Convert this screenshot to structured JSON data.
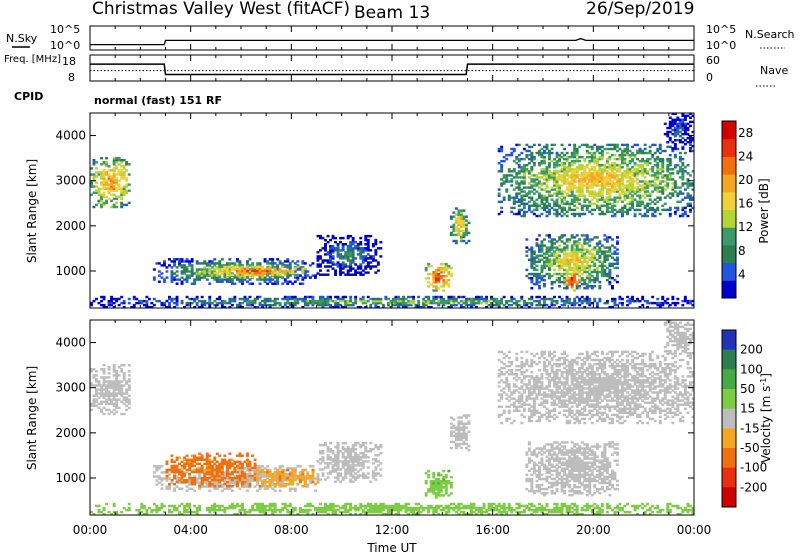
{
  "header": {
    "station": "Christmas Valley West (fitACF)",
    "beam": "Beam 13",
    "date": "26/Sep/2019"
  },
  "chart_data": [
    {
      "type": "line",
      "panel": "noise",
      "left_label": "N.Sky",
      "right_label": "N.Search",
      "left_ticks": [
        "10^5",
        "10^0"
      ],
      "right_ticks": [
        "10^5",
        "10^0"
      ],
      "series": [
        {
          "name": "N.Sky",
          "x": [
            0,
            2.95,
            3.0,
            13,
            19.3,
            19.5,
            19.7,
            24
          ],
          "y": [
            0.2,
            0.2,
            0.55,
            0.55,
            0.55,
            0.7,
            0.55,
            0.55
          ]
        }
      ]
    },
    {
      "type": "line",
      "panel": "frequency",
      "left_label": "Freq. [MHz]",
      "right_label": "Nave",
      "left_ticks": [
        "18",
        "8"
      ],
      "right_ticks": [
        "60",
        "0"
      ],
      "series": [
        {
          "name": "Freq. [MHz]",
          "x": [
            0,
            2.95,
            3.0,
            14.95,
            15.0,
            24
          ],
          "y": [
            14.5,
            14.5,
            10.5,
            10.5,
            14.5,
            14.5
          ]
        },
        {
          "name": "Nave",
          "x": [
            0,
            24
          ],
          "y": [
            24,
            24
          ]
        }
      ]
    },
    {
      "type": "heatmap",
      "panel": "power",
      "cpid_label": "CPID",
      "cpid_text": "normal (fast) 151 RF",
      "ylabel": "Slant Range [km]",
      "xlabel": "Time UT",
      "x_ticks": [
        "00:00",
        "04:00",
        "08:00",
        "12:00",
        "16:00",
        "20:00",
        "00:00"
      ],
      "xlim": [
        0,
        24
      ],
      "y_ticks": [
        "1000",
        "2000",
        "3000",
        "4000"
      ],
      "ylim": [
        180,
        4500
      ],
      "colorbar_label": "Power [dB]",
      "colorbar_ticks": [
        "28",
        "24",
        "20",
        "16",
        "12",
        "8",
        "4"
      ],
      "clim": [
        0,
        30
      ],
      "regions": [
        {
          "t": [
            0.0,
            1.6
          ],
          "r": [
            2400,
            3500
          ],
          "value": 22
        },
        {
          "t": [
            2.5,
            9.0
          ],
          "r": [
            700,
            1250
          ],
          "value": 16
        },
        {
          "t": [
            4.5,
            8.5
          ],
          "r": [
            850,
            1100
          ],
          "value": 25
        },
        {
          "t": [
            9.0,
            11.5
          ],
          "r": [
            900,
            1800
          ],
          "value": 10
        },
        {
          "t": [
            0.0,
            24.0
          ],
          "r": [
            180,
            420
          ],
          "value": 14
        },
        {
          "t": [
            13.3,
            14.3
          ],
          "r": [
            550,
            1150
          ],
          "value": 26
        },
        {
          "t": [
            14.3,
            15.0
          ],
          "r": [
            1600,
            2400
          ],
          "value": 20
        },
        {
          "t": [
            16.2,
            24.0
          ],
          "r": [
            2200,
            3800
          ],
          "value": 19
        },
        {
          "t": [
            17.3,
            21.0
          ],
          "r": [
            600,
            1800
          ],
          "value": 18
        },
        {
          "t": [
            18.8,
            19.5
          ],
          "r": [
            550,
            1000
          ],
          "value": 28
        },
        {
          "t": [
            22.8,
            24.0
          ],
          "r": [
            3700,
            4500
          ],
          "value": 8
        }
      ]
    },
    {
      "type": "heatmap",
      "panel": "velocity",
      "ylabel": "Slant Range [km]",
      "xlabel": "Time UT",
      "x_ticks": [
        "00:00",
        "04:00",
        "08:00",
        "12:00",
        "16:00",
        "20:00",
        "00:00"
      ],
      "xlim": [
        0,
        24
      ],
      "y_ticks": [
        "1000",
        "2000",
        "3000",
        "4000"
      ],
      "ylim": [
        180,
        4500
      ],
      "colorbar_label": "Velocity [m s^-1]",
      "colorbar_ticks": [
        "200",
        "100",
        "50",
        "15",
        "-15",
        "-50",
        "-100",
        "-200"
      ],
      "clim": [
        -250,
        250
      ],
      "regions": [
        {
          "t": [
            0.0,
            1.6
          ],
          "r": [
            2400,
            3500
          ],
          "value": 0
        },
        {
          "t": [
            2.5,
            9.0
          ],
          "r": [
            700,
            1250
          ],
          "value": 0
        },
        {
          "t": [
            3.0,
            6.5
          ],
          "r": [
            800,
            1550
          ],
          "value": -60
        },
        {
          "t": [
            6.5,
            9.0
          ],
          "r": [
            800,
            1200
          ],
          "value": -40
        },
        {
          "t": [
            9.0,
            11.5
          ],
          "r": [
            900,
            1800
          ],
          "value": 0
        },
        {
          "t": [
            0.0,
            24.0
          ],
          "r": [
            180,
            420
          ],
          "value": 30
        },
        {
          "t": [
            13.3,
            14.3
          ],
          "r": [
            550,
            1150
          ],
          "value": 40
        },
        {
          "t": [
            14.3,
            15.0
          ],
          "r": [
            1600,
            2400
          ],
          "value": 0
        },
        {
          "t": [
            16.2,
            24.0
          ],
          "r": [
            2200,
            3800
          ],
          "value": 0
        },
        {
          "t": [
            17.3,
            21.0
          ],
          "r": [
            600,
            1800
          ],
          "value": 0
        },
        {
          "t": [
            22.8,
            24.0
          ],
          "r": [
            3700,
            4500
          ],
          "value": 0
        }
      ]
    }
  ]
}
